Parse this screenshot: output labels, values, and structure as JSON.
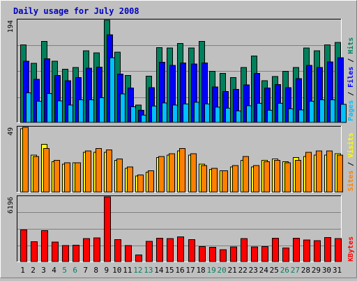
{
  "chart_data": [
    {
      "type": "bar",
      "title": "Daily usage for July 2008",
      "ylabel": "Pages / Files / Hits",
      "ymax_label": "194",
      "ylim": [
        0,
        194
      ],
      "categories": [
        "1",
        "2",
        "3",
        "4",
        "5",
        "6",
        "7",
        "8",
        "9",
        "10",
        "11",
        "12",
        "13",
        "14",
        "15",
        "16",
        "17",
        "18",
        "19",
        "20",
        "21",
        "22",
        "23",
        "24",
        "25",
        "26",
        "27",
        "28",
        "29",
        "30",
        "31"
      ],
      "weekend_days": [
        "5",
        "6",
        "12",
        "13",
        "19",
        "20",
        "26",
        "27"
      ],
      "series": [
        {
          "name": "Hits",
          "color": "#00805c",
          "values": [
            147,
            112,
            154,
            116,
            101,
            104,
            136,
            132,
            194,
            133,
            89,
            33,
            88,
            142,
            141,
            150,
            141,
            154,
            97,
            93,
            85,
            104,
            126,
            79,
            87,
            97,
            104,
            141,
            136,
            147,
            152
          ]
        },
        {
          "name": "Files",
          "color": "#0000ff",
          "values": [
            116,
            82,
            121,
            89,
            79,
            85,
            103,
            105,
            166,
            92,
            65,
            23,
            66,
            114,
            108,
            113,
            111,
            113,
            67,
            59,
            63,
            71,
            93,
            65,
            72,
            66,
            83,
            108,
            104,
            115,
            123
          ]
        },
        {
          "name": "Pages",
          "color": "#00c0ff",
          "values": [
            56,
            40,
            55,
            41,
            33,
            43,
            43,
            47,
            123,
            54,
            30,
            14,
            31,
            37,
            33,
            35,
            38,
            35,
            29,
            27,
            22,
            32,
            36,
            23,
            36,
            26,
            24,
            40,
            43,
            43,
            34
          ]
        }
      ]
    },
    {
      "type": "bar",
      "ylabel": "Sites / Visits",
      "ymax_label": "49",
      "ylim": [
        0,
        49
      ],
      "categories": [
        "1",
        "2",
        "3",
        "4",
        "5",
        "6",
        "7",
        "8",
        "9",
        "10",
        "11",
        "12",
        "13",
        "14",
        "15",
        "16",
        "17",
        "18",
        "19",
        "20",
        "21",
        "22",
        "23",
        "24",
        "25",
        "26",
        "27",
        "28",
        "29",
        "30",
        "31"
      ],
      "series": [
        {
          "name": "Visits",
          "color": "#ffff00",
          "values": [
            48,
            28,
            36,
            23,
            21,
            22,
            30,
            30,
            30,
            24,
            18,
            12,
            15,
            26,
            28,
            31,
            28,
            21,
            17,
            16,
            19,
            24,
            19,
            24,
            25,
            23,
            26,
            27,
            28,
            28,
            29
          ]
        },
        {
          "name": "Sites",
          "color": "#ff8000",
          "values": [
            49,
            27,
            33,
            24,
            22,
            22,
            31,
            33,
            32,
            25,
            19,
            13,
            16,
            27,
            29,
            33,
            29,
            20,
            18,
            16,
            20,
            27,
            20,
            23,
            24,
            22,
            24,
            30,
            31,
            31,
            28
          ]
        }
      ]
    },
    {
      "type": "bar",
      "ylabel": "KBytes",
      "ymax_label": "6196",
      "ylim": [
        0,
        6196
      ],
      "categories": [
        "1",
        "2",
        "3",
        "4",
        "5",
        "6",
        "7",
        "8",
        "9",
        "10",
        "11",
        "12",
        "13",
        "14",
        "15",
        "16",
        "17",
        "18",
        "19",
        "20",
        "21",
        "22",
        "23",
        "24",
        "25",
        "26",
        "27",
        "28",
        "29",
        "30",
        "31"
      ],
      "series": [
        {
          "name": "KBytes",
          "color": "#ff0000",
          "values": [
            3023,
            1892,
            2960,
            1856,
            1546,
            1553,
            2205,
            2249,
            6196,
            2088,
            1533,
            639,
            1944,
            2218,
            2195,
            2378,
            2111,
            1439,
            1380,
            1141,
            1400,
            2191,
            1390,
            1443,
            2217,
            1287,
            2243,
            2056,
            1990,
            2315,
            2201
          ]
        }
      ]
    }
  ]
}
